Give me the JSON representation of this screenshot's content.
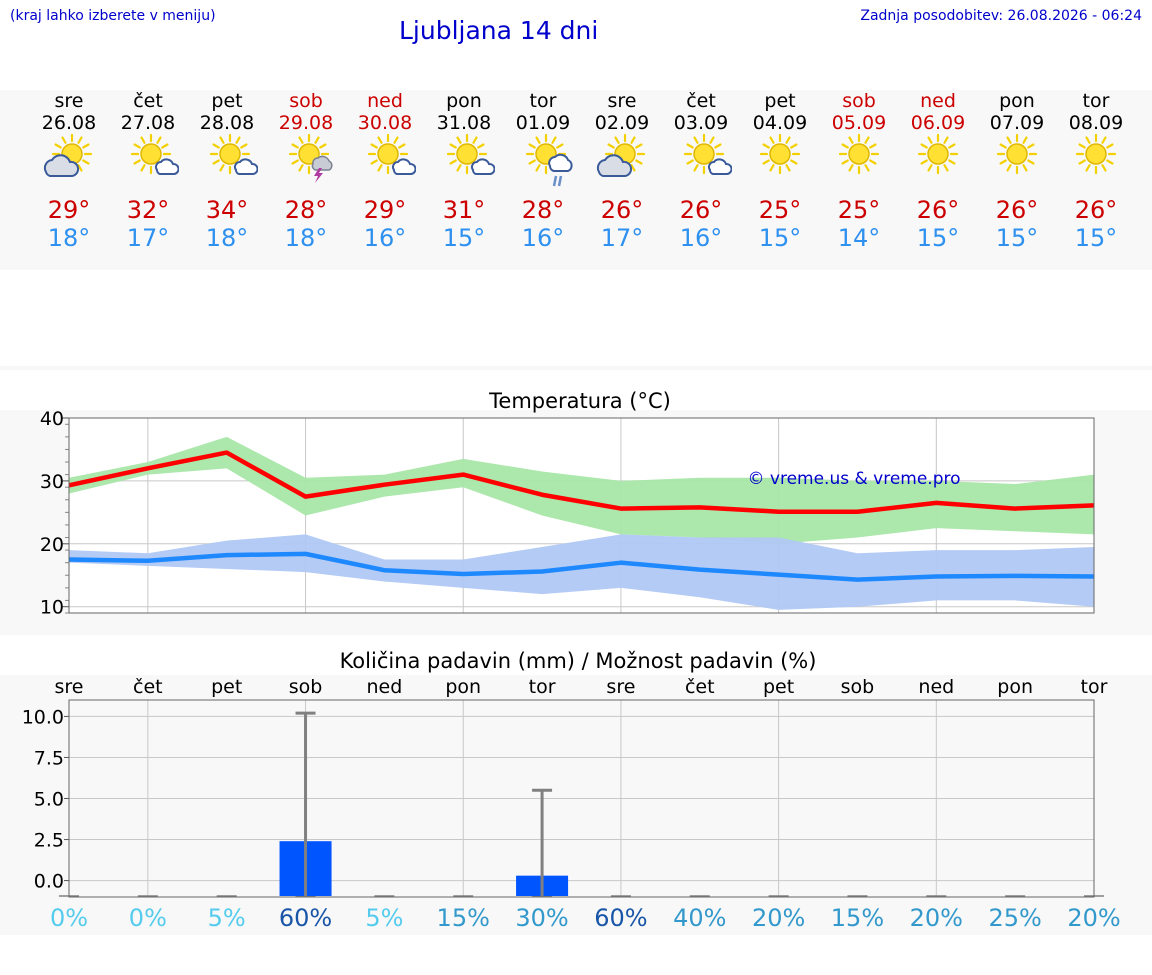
{
  "header": {
    "menu_hint": "(kraj lahko izberete v meniju)",
    "title": "Ljubljana 14 dni",
    "last_update": "Zadnja posodobitev: 26.08.2026 - 06:24"
  },
  "days": [
    {
      "name": "sre",
      "date": "26.08",
      "weekend": false,
      "icon": "sun-cloud-icon",
      "tmax": "29°",
      "tmin": "18°"
    },
    {
      "name": "čet",
      "date": "27.08",
      "weekend": false,
      "icon": "sun-small-cloud-icon",
      "tmax": "32°",
      "tmin": "17°"
    },
    {
      "name": "pet",
      "date": "28.08",
      "weekend": false,
      "icon": "sun-small-cloud-icon",
      "tmax": "34°",
      "tmin": "18°"
    },
    {
      "name": "sob",
      "date": "29.08",
      "weekend": true,
      "icon": "sun-thunder-icon",
      "tmax": "28°",
      "tmin": "18°"
    },
    {
      "name": "ned",
      "date": "30.08",
      "weekend": true,
      "icon": "sun-small-cloud-icon",
      "tmax": "29°",
      "tmin": "16°"
    },
    {
      "name": "pon",
      "date": "31.08",
      "weekend": false,
      "icon": "sun-small-cloud-icon",
      "tmax": "31°",
      "tmin": "15°"
    },
    {
      "name": "tor",
      "date": "01.09",
      "weekend": false,
      "icon": "sun-cloud-rain-icon",
      "tmax": "28°",
      "tmin": "16°"
    },
    {
      "name": "sre",
      "date": "02.09",
      "weekend": false,
      "icon": "sun-cloud-icon",
      "tmax": "26°",
      "tmin": "17°"
    },
    {
      "name": "čet",
      "date": "03.09",
      "weekend": false,
      "icon": "sun-small-cloud-icon",
      "tmax": "26°",
      "tmin": "16°"
    },
    {
      "name": "pet",
      "date": "04.09",
      "weekend": false,
      "icon": "sun-icon",
      "tmax": "25°",
      "tmin": "15°"
    },
    {
      "name": "sob",
      "date": "05.09",
      "weekend": true,
      "icon": "sun-icon",
      "tmax": "25°",
      "tmin": "14°"
    },
    {
      "name": "ned",
      "date": "06.09",
      "weekend": true,
      "icon": "sun-icon",
      "tmax": "26°",
      "tmin": "15°"
    },
    {
      "name": "pon",
      "date": "07.09",
      "weekend": false,
      "icon": "sun-icon",
      "tmax": "26°",
      "tmin": "15°"
    },
    {
      "name": "tor",
      "date": "08.09",
      "weekend": false,
      "icon": "sun-icon",
      "tmax": "26°",
      "tmin": "15°"
    }
  ],
  "chart_data": [
    {
      "type": "line",
      "title": "Temperatura (°C)",
      "watermark": "© vreme.us & vreme.pro",
      "ylim": [
        9,
        40
      ],
      "yticks": [
        10,
        20,
        30,
        40
      ],
      "grid": true,
      "x_count": 14,
      "series": [
        {
          "values": [
            29.3,
            32.0,
            34.5,
            27.5,
            29.4,
            31.0,
            27.8,
            25.6,
            25.8,
            25.1,
            25.1,
            26.5,
            25.6,
            26.1
          ],
          "band_low": [
            28.0,
            31.0,
            32.0,
            24.5,
            27.5,
            29.0,
            24.5,
            21.5,
            21.0,
            20.0,
            21.0,
            22.5,
            22.0,
            21.5
          ],
          "band_high": [
            30.5,
            33.0,
            37.0,
            30.5,
            31.0,
            33.5,
            31.5,
            30.0,
            30.5,
            30.5,
            30.0,
            30.0,
            29.5,
            31.0
          ],
          "color": "#ff0000",
          "band_color": "#a8e6a8"
        },
        {
          "values": [
            17.5,
            17.3,
            18.2,
            18.4,
            15.8,
            15.2,
            15.6,
            17.0,
            15.9,
            15.1,
            14.3,
            14.8,
            14.9,
            14.8
          ],
          "band_low": [
            17.0,
            16.5,
            16.0,
            15.5,
            14.0,
            13.0,
            12.0,
            13.0,
            11.5,
            9.5,
            10.0,
            11.0,
            11.0,
            10.0
          ],
          "band_high": [
            19.0,
            18.5,
            20.5,
            21.5,
            17.5,
            17.5,
            19.5,
            21.5,
            21.0,
            21.0,
            18.5,
            19.0,
            19.0,
            19.5
          ],
          "color": "#1e88ff",
          "band_color": "#b0c8f4"
        }
      ]
    },
    {
      "type": "bar",
      "title": "Količina padavin (mm) / Možnost padavin (%)",
      "categories": [
        "sre",
        "čet",
        "pet",
        "sob",
        "ned",
        "pon",
        "tor",
        "sre",
        "čet",
        "pet",
        "sob",
        "ned",
        "pon",
        "tor"
      ],
      "ylim": [
        -1,
        11
      ],
      "yticks": [
        0,
        2.5,
        5,
        7.5,
        10
      ],
      "ytick_labels": [
        "0.0",
        "2.5",
        "5.0",
        "7.5",
        "10.0"
      ],
      "grid": true,
      "values": [
        0,
        0,
        0,
        2.4,
        0,
        0,
        0.3,
        0,
        0,
        0,
        0,
        0,
        0,
        0
      ],
      "error_high": [
        0,
        0,
        0,
        10.2,
        0,
        0,
        5.5,
        0,
        0,
        0,
        0,
        0,
        0,
        0
      ],
      "probability": [
        "0%",
        "0%",
        "5%",
        "60%",
        "5%",
        "15%",
        "30%",
        "60%",
        "40%",
        "20%",
        "15%",
        "20%",
        "25%",
        "20%"
      ],
      "probability_colors": [
        "#55ccee",
        "#55ccee",
        "#55ccee",
        "#1a56a8",
        "#55ccee",
        "#3399cc",
        "#3399cc",
        "#1a56a8",
        "#3399cc",
        "#3399cc",
        "#3399cc",
        "#3399cc",
        "#3399cc",
        "#3399cc"
      ],
      "bar_color": "#0055ff",
      "error_color": "#808080"
    }
  ]
}
